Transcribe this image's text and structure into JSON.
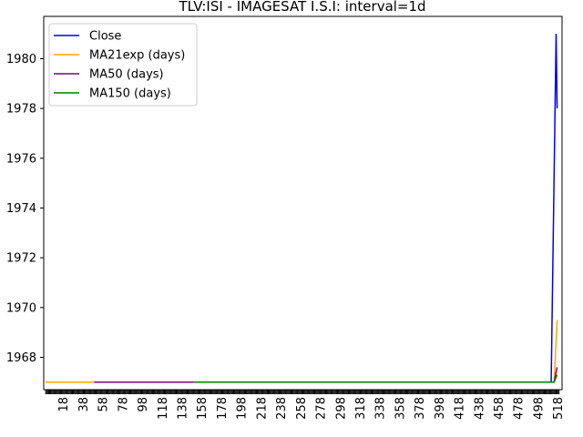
{
  "chart_data": {
    "type": "line",
    "title": "TLV:ISI - IMAGESAT  I.S.I: interval=1d",
    "xlabel": "",
    "ylabel": "",
    "xlim": [
      -2,
      522
    ],
    "ylim": [
      1966.7,
      1981.7
    ],
    "y_ticks": [
      1968,
      1970,
      1972,
      1974,
      1976,
      1978,
      1980
    ],
    "x_ticks": [
      18,
      38,
      58,
      78,
      98,
      118,
      138,
      158,
      178,
      198,
      218,
      238,
      258,
      278,
      298,
      318,
      338,
      358,
      378,
      398,
      418,
      438,
      458,
      478,
      498,
      518
    ],
    "minor_tick_range": [
      0,
      519
    ],
    "legend_position": "upper-left",
    "series": [
      {
        "name": "Close",
        "color": "#0000ff",
        "points": [
          [
            0,
            1967
          ],
          [
            511,
            1967
          ],
          [
            516,
            1981
          ],
          [
            517,
            1978
          ]
        ]
      },
      {
        "name": "MA21exp (days)",
        "color": "#ffa500",
        "points": [
          [
            0,
            1967
          ],
          [
            514,
            1967
          ],
          [
            517,
            1969.5
          ]
        ]
      },
      {
        "name": "MA50 (days)",
        "color": "#800080",
        "points": [
          [
            49,
            1967
          ],
          [
            514,
            1967
          ],
          [
            517,
            1967.6
          ]
        ]
      },
      {
        "name": "MA150 (days)",
        "color": "#008000",
        "points": [
          [
            149,
            1967
          ],
          [
            514,
            1967
          ],
          [
            517,
            1967.3
          ]
        ]
      }
    ]
  }
}
